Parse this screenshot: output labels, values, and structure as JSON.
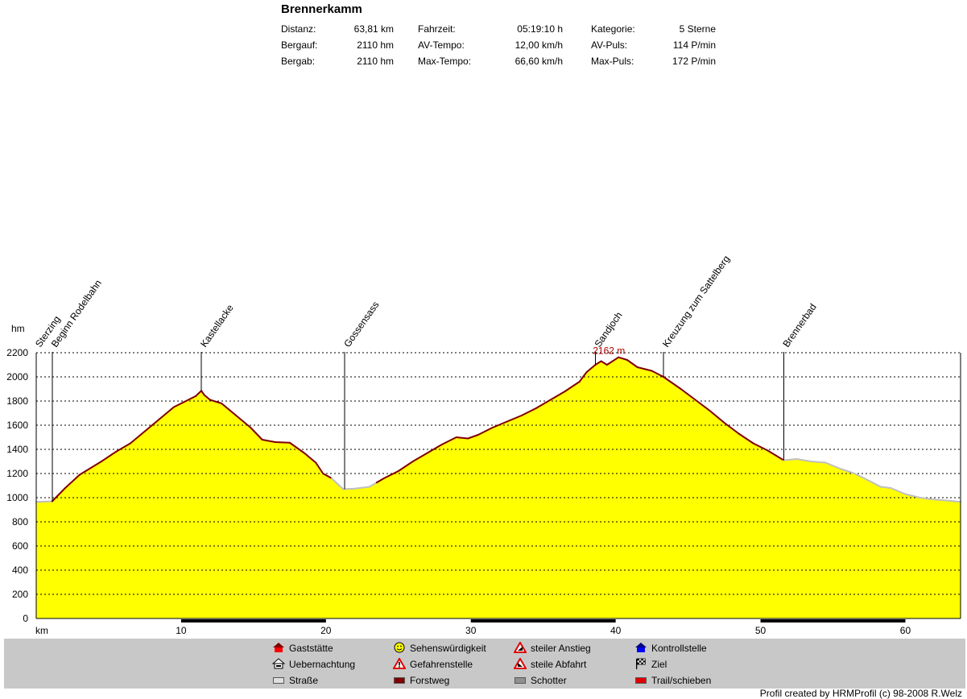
{
  "title": "Brennerkamm",
  "stats": [
    {
      "label": "Distanz:",
      "value": "63,81 km"
    },
    {
      "label": "Bergauf:",
      "value": "2110 hm"
    },
    {
      "label": "Bergab:",
      "value": "2110 hm"
    },
    {
      "label": "Fahrzeit:",
      "value": "05:19:10 h"
    },
    {
      "label": "AV-Tempo:",
      "value": "12,00 km/h"
    },
    {
      "label": "Max-Tempo:",
      "value": "66,60 km/h"
    },
    {
      "label": "Kategorie:",
      "value": "5 Sterne"
    },
    {
      "label": "AV-Puls:",
      "value": "114 P/min"
    },
    {
      "label": "Max-Puls:",
      "value": "172 P/min"
    }
  ],
  "chart_data": {
    "type": "area",
    "xlabel": "km",
    "ylabel": "hm",
    "xlim": [
      0,
      63.81
    ],
    "ylim": [
      0,
      2200
    ],
    "x_ticks": [
      10,
      20,
      30,
      40,
      50,
      60
    ],
    "y_ticks": [
      0,
      200,
      400,
      600,
      800,
      1000,
      1200,
      1400,
      1600,
      1800,
      2000,
      2200
    ],
    "grid": true,
    "fill_color": "#ffff00",
    "line_color": "#800000",
    "road_line_color": "#c0c0c0",
    "max_label": "2162 m",
    "max_point": {
      "x": 40.2,
      "y": 2162
    },
    "profile": [
      [
        0,
        965
      ],
      [
        1.1,
        970
      ],
      [
        2.0,
        1080
      ],
      [
        3.0,
        1190
      ],
      [
        4.5,
        1300
      ],
      [
        5.5,
        1380
      ],
      [
        6.5,
        1450
      ],
      [
        7.5,
        1550
      ],
      [
        8.5,
        1650
      ],
      [
        9.5,
        1750
      ],
      [
        10.5,
        1810
      ],
      [
        11.0,
        1840
      ],
      [
        11.4,
        1885
      ],
      [
        11.6,
        1850
      ],
      [
        12.0,
        1810
      ],
      [
        12.8,
        1780
      ],
      [
        13.8,
        1680
      ],
      [
        14.8,
        1580
      ],
      [
        15.6,
        1480
      ],
      [
        16.5,
        1460
      ],
      [
        17.5,
        1455
      ],
      [
        18.5,
        1370
      ],
      [
        19.3,
        1290
      ],
      [
        19.8,
        1200
      ],
      [
        20.4,
        1160
      ],
      [
        21.2,
        1070
      ],
      [
        22.0,
        1075
      ],
      [
        23.0,
        1090
      ],
      [
        24.0,
        1160
      ],
      [
        25.0,
        1220
      ],
      [
        26.0,
        1300
      ],
      [
        27.0,
        1370
      ],
      [
        28.0,
        1440
      ],
      [
        29.0,
        1500
      ],
      [
        29.8,
        1490
      ],
      [
        30.5,
        1520
      ],
      [
        31.5,
        1580
      ],
      [
        32.5,
        1630
      ],
      [
        33.5,
        1680
      ],
      [
        34.5,
        1740
      ],
      [
        35.5,
        1810
      ],
      [
        36.5,
        1880
      ],
      [
        37.5,
        1960
      ],
      [
        38.0,
        2040
      ],
      [
        38.6,
        2100
      ],
      [
        39.0,
        2130
      ],
      [
        39.4,
        2100
      ],
      [
        40.2,
        2162
      ],
      [
        40.8,
        2140
      ],
      [
        41.5,
        2080
      ],
      [
        42.5,
        2050
      ],
      [
        43.3,
        2000
      ],
      [
        44.5,
        1900
      ],
      [
        45.5,
        1810
      ],
      [
        46.5,
        1720
      ],
      [
        47.5,
        1620
      ],
      [
        48.5,
        1530
      ],
      [
        49.5,
        1450
      ],
      [
        50.5,
        1390
      ],
      [
        51.6,
        1310
      ],
      [
        52.5,
        1320
      ],
      [
        53.5,
        1300
      ],
      [
        54.5,
        1290
      ],
      [
        55.5,
        1240
      ],
      [
        56.5,
        1200
      ],
      [
        57.5,
        1140
      ],
      [
        58.3,
        1090
      ],
      [
        59.0,
        1080
      ],
      [
        60.0,
        1030
      ],
      [
        61.0,
        1000
      ],
      [
        62.0,
        985
      ],
      [
        63.0,
        975
      ],
      [
        63.81,
        965
      ]
    ],
    "road_segments": [
      [
        0,
        1.1
      ],
      [
        20.4,
        23.5
      ],
      [
        51.6,
        63.81
      ]
    ],
    "waypoints": [
      {
        "name": "Sterzing",
        "km": 0.0
      },
      {
        "name": "Beginn Rodelbahn",
        "km": 1.1
      },
      {
        "name": "Kastellacke",
        "km": 11.4
      },
      {
        "name": "Gossensass",
        "km": 21.3
      },
      {
        "name": "Sandjoch",
        "km": 38.6
      },
      {
        "name": "Kreuzung zum Sattelberg",
        "km": 43.3
      },
      {
        "name": "Brennerbad",
        "km": 51.6
      }
    ],
    "surface_bands": [
      [
        10,
        20
      ],
      [
        30,
        40
      ],
      [
        50,
        60
      ]
    ]
  },
  "legend": [
    {
      "icon": "house-red-icon",
      "label": "Gaststätte"
    },
    {
      "icon": "smiley-icon",
      "label": "Sehenswürdigkeit"
    },
    {
      "icon": "warning-steep-up-icon",
      "label": "steiler Anstieg"
    },
    {
      "icon": "house-blue-icon",
      "label": "Kontrollstelle"
    },
    {
      "icon": "bed-icon",
      "label": "Uebernachtung"
    },
    {
      "icon": "warning-icon",
      "label": "Gefahrenstelle"
    },
    {
      "icon": "warning-steep-down-icon",
      "label": "steile Abfahrt"
    },
    {
      "icon": "checkered-flag-icon",
      "label": "Ziel"
    },
    {
      "icon": "swatch-road-icon",
      "label": "Straße",
      "color": "#e0e0e0"
    },
    {
      "icon": "swatch-forest-road-icon",
      "label": "Forstweg",
      "color": "#800000"
    },
    {
      "icon": "swatch-gravel-icon",
      "label": "Schotter",
      "color": "#909090"
    },
    {
      "icon": "swatch-trail-icon",
      "label": "Trail/schieben",
      "color": "#e00000"
    }
  ],
  "credit": "Profil created by HRMProfil (c) 98-2008 R.Welz"
}
